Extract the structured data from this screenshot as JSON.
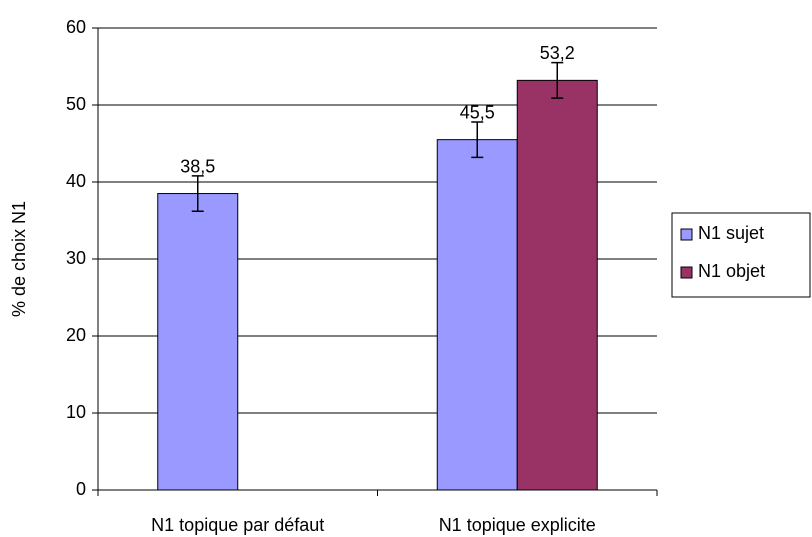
{
  "chart_data": {
    "type": "bar",
    "y_label": "% de choix N1",
    "categories": [
      "N1 topique par défaut",
      "N1 topique explicite"
    ],
    "series": [
      {
        "name": "N1 sujet",
        "color": "#9999ff",
        "values": [
          38.5,
          45.5
        ],
        "value_labels": [
          "38,5",
          "45,5"
        ],
        "errors": [
          2.3,
          2.3
        ]
      },
      {
        "name": "N1 objet",
        "color": "#993366",
        "values": [
          null,
          53.2
        ],
        "value_labels": [
          null,
          "53,2"
        ],
        "errors": [
          null,
          2.3
        ]
      }
    ],
    "ylim": [
      0,
      60
    ],
    "yticks": [
      0,
      10,
      20,
      30,
      40,
      50,
      60
    ],
    "grid": true,
    "legend": "right"
  }
}
